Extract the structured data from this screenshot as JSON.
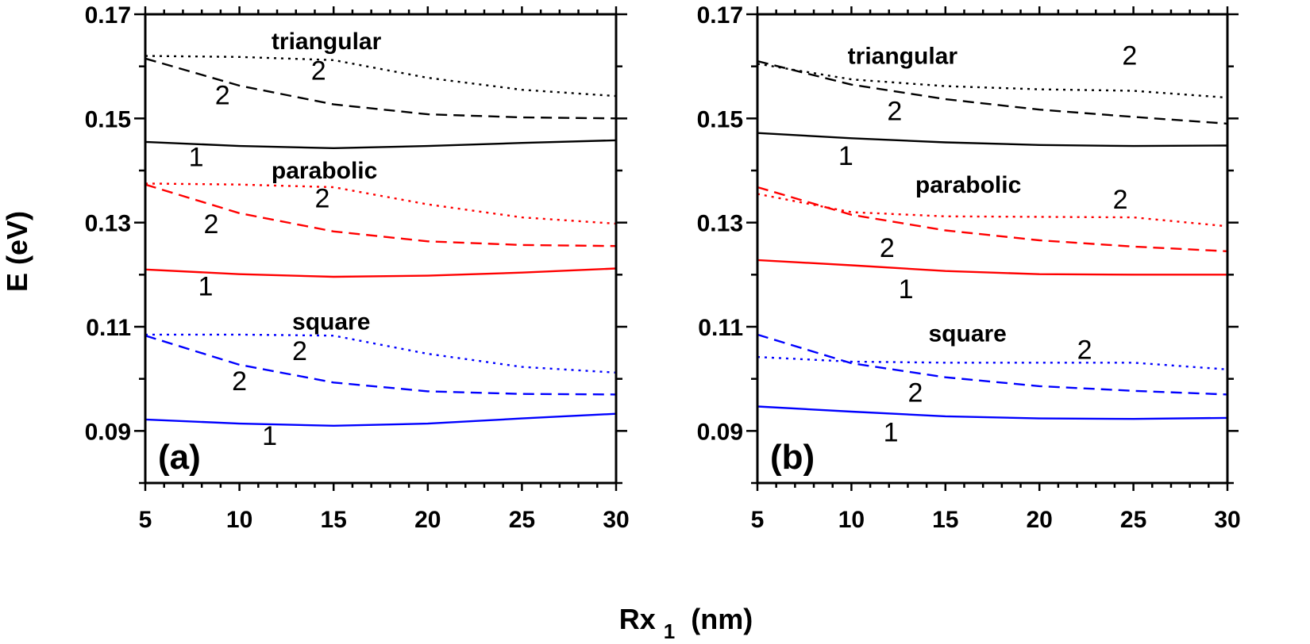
{
  "figure": {
    "ylabel": "E (eV)",
    "xlabel_main": "Rx",
    "xlabel_sub": "1",
    "xlabel_unit": " (nm)"
  },
  "chart_data": [
    {
      "type": "line",
      "panel_label": "(a)",
      "xlim": [
        5,
        30
      ],
      "ylim": [
        0.08,
        0.17
      ],
      "x_ticks": [
        5,
        10,
        15,
        20,
        25,
        30
      ],
      "x_tick_labels": [
        "5",
        "10",
        "15",
        "20",
        "25",
        "30"
      ],
      "y_ticks": [
        0.09,
        0.11,
        0.13,
        0.15,
        0.17
      ],
      "y_tick_labels": [
        "0.09",
        "0.11",
        "0.13",
        "0.15",
        "0.17"
      ],
      "region_labels": [
        {
          "id": "triangular",
          "text": "triangular",
          "x": 11.7,
          "y": 0.1633
        },
        {
          "id": "parabolic",
          "text": "parabolic",
          "x": 11.7,
          "y": 0.1385
        },
        {
          "id": "square",
          "text": "square",
          "x": 12.8,
          "y": 0.1095
        }
      ],
      "series": [
        {
          "name": "triangular level 1",
          "shape": "triangular",
          "level": "1",
          "color": "#000000",
          "dash": "solid",
          "x": [
            5,
            10,
            15,
            20,
            25,
            30
          ],
          "y": [
            0.1455,
            0.1447,
            0.1443,
            0.1447,
            0.1453,
            0.1458
          ]
        },
        {
          "name": "triangular level 2 dashed",
          "shape": "triangular",
          "level": "2",
          "color": "#000000",
          "dash": "dashed",
          "x": [
            5,
            10,
            15,
            20,
            25,
            30
          ],
          "y": [
            0.1615,
            0.1563,
            0.1527,
            0.1508,
            0.1502,
            0.15
          ]
        },
        {
          "name": "triangular level 2 dotted",
          "shape": "triangular",
          "level": "2",
          "color": "#000000",
          "dash": "dotted",
          "x": [
            5,
            10,
            15,
            20,
            25,
            30
          ],
          "y": [
            0.162,
            0.1618,
            0.1612,
            0.1578,
            0.1555,
            0.1543
          ]
        },
        {
          "name": "parabolic level 1",
          "shape": "parabolic",
          "level": "1",
          "color": "#ff0000",
          "dash": "solid",
          "x": [
            5,
            10,
            15,
            20,
            25,
            30
          ],
          "y": [
            0.121,
            0.1201,
            0.1196,
            0.1198,
            0.1204,
            0.1212
          ]
        },
        {
          "name": "parabolic level 2 dashed",
          "shape": "parabolic",
          "level": "2",
          "color": "#ff0000",
          "dash": "dashed",
          "x": [
            5,
            10,
            15,
            20,
            25,
            30
          ],
          "y": [
            0.1373,
            0.1318,
            0.1283,
            0.1264,
            0.1257,
            0.1255
          ]
        },
        {
          "name": "parabolic level 2 dotted",
          "shape": "parabolic",
          "level": "2",
          "color": "#ff0000",
          "dash": "dotted",
          "x": [
            5,
            10,
            15,
            20,
            25,
            30
          ],
          "y": [
            0.1375,
            0.1373,
            0.1368,
            0.1335,
            0.131,
            0.1298
          ]
        },
        {
          "name": "square level 1",
          "shape": "square",
          "level": "1",
          "color": "#0000ff",
          "dash": "solid",
          "x": [
            5,
            10,
            15,
            20,
            25,
            30
          ],
          "y": [
            0.0922,
            0.0914,
            0.091,
            0.0914,
            0.0924,
            0.0933
          ]
        },
        {
          "name": "square level 2 dashed",
          "shape": "square",
          "level": "2",
          "color": "#0000ff",
          "dash": "dashed",
          "x": [
            5,
            10,
            15,
            20,
            25,
            30
          ],
          "y": [
            0.1083,
            0.1027,
            0.0993,
            0.0976,
            0.0971,
            0.097
          ]
        },
        {
          "name": "square level 2 dotted",
          "shape": "square",
          "level": "2",
          "color": "#0000ff",
          "dash": "dotted",
          "x": [
            5,
            10,
            15,
            20,
            25,
            30
          ],
          "y": [
            0.1085,
            0.1085,
            0.1083,
            0.1048,
            0.1023,
            0.1012
          ]
        }
      ],
      "curve_labels": [
        {
          "text": "2",
          "x": 14.2,
          "y": 0.1574
        },
        {
          "text": "2",
          "x": 9.1,
          "y": 0.1527
        },
        {
          "text": "1",
          "x": 7.7,
          "y": 0.1408
        },
        {
          "text": "2",
          "x": 14.4,
          "y": 0.1329
        },
        {
          "text": "2",
          "x": 8.5,
          "y": 0.128
        },
        {
          "text": "1",
          "x": 8.2,
          "y": 0.116
        },
        {
          "text": "2",
          "x": 13.2,
          "y": 0.1036
        },
        {
          "text": "2",
          "x": 10.0,
          "y": 0.0978
        },
        {
          "text": "1",
          "x": 11.6,
          "y": 0.0873
        }
      ]
    },
    {
      "type": "line",
      "panel_label": "(b)",
      "xlim": [
        5,
        30
      ],
      "ylim": [
        0.08,
        0.17
      ],
      "x_ticks": [
        5,
        10,
        15,
        20,
        25,
        30
      ],
      "x_tick_labels": [
        "5",
        "10",
        "15",
        "20",
        "25",
        "30"
      ],
      "y_ticks": [
        0.09,
        0.11,
        0.13,
        0.15,
        0.17
      ],
      "y_tick_labels": [
        "0.09",
        "0.11",
        "0.13",
        "0.15",
        "0.17"
      ],
      "region_labels": [
        {
          "id": "triangular",
          "text": "triangular",
          "x": 9.8,
          "y": 0.1605
        },
        {
          "id": "parabolic",
          "text": "parabolic",
          "x": 13.4,
          "y": 0.1357
        },
        {
          "id": "square",
          "text": "square",
          "x": 14.1,
          "y": 0.1072
        }
      ],
      "series": [
        {
          "name": "triangular level 1",
          "shape": "triangular",
          "level": "1",
          "color": "#000000",
          "dash": "solid",
          "x": [
            5,
            10,
            15,
            20,
            25,
            30
          ],
          "y": [
            0.1472,
            0.1462,
            0.1454,
            0.1449,
            0.1447,
            0.1448
          ]
        },
        {
          "name": "triangular level 2 dashed",
          "shape": "triangular",
          "level": "2",
          "color": "#000000",
          "dash": "dashed",
          "x": [
            5,
            10,
            15,
            20,
            25,
            30
          ],
          "y": [
            0.161,
            0.1565,
            0.1537,
            0.1517,
            0.1503,
            0.149
          ]
        },
        {
          "name": "triangular level 2 dotted",
          "shape": "triangular",
          "level": "2",
          "color": "#000000",
          "dash": "dotted",
          "x": [
            5,
            10,
            15,
            20,
            25,
            30
          ],
          "y": [
            0.1605,
            0.1575,
            0.1562,
            0.1556,
            0.1553,
            0.154
          ]
        },
        {
          "name": "parabolic level 1",
          "shape": "parabolic",
          "level": "1",
          "color": "#ff0000",
          "dash": "solid",
          "x": [
            5,
            10,
            15,
            20,
            25,
            30
          ],
          "y": [
            0.1228,
            0.1218,
            0.1207,
            0.1201,
            0.12,
            0.12
          ]
        },
        {
          "name": "parabolic level 2 dashed",
          "shape": "parabolic",
          "level": "2",
          "color": "#ff0000",
          "dash": "dashed",
          "x": [
            5,
            10,
            15,
            20,
            25,
            30
          ],
          "y": [
            0.1368,
            0.1315,
            0.1285,
            0.1266,
            0.1254,
            0.1245
          ]
        },
        {
          "name": "parabolic level 2 dotted",
          "shape": "parabolic",
          "level": "2",
          "color": "#ff0000",
          "dash": "dotted",
          "x": [
            5,
            10,
            15,
            20,
            25,
            30
          ],
          "y": [
            0.1355,
            0.132,
            0.1312,
            0.1311,
            0.131,
            0.1293
          ]
        },
        {
          "name": "square level 1",
          "shape": "square",
          "level": "1",
          "color": "#0000ff",
          "dash": "solid",
          "x": [
            5,
            10,
            15,
            20,
            25,
            30
          ],
          "y": [
            0.0947,
            0.0937,
            0.0928,
            0.0924,
            0.0923,
            0.0925
          ]
        },
        {
          "name": "square level 2 dashed",
          "shape": "square",
          "level": "2",
          "color": "#0000ff",
          "dash": "dashed",
          "x": [
            5,
            10,
            15,
            20,
            25,
            30
          ],
          "y": [
            0.1085,
            0.103,
            0.1003,
            0.0986,
            0.0977,
            0.097
          ]
        },
        {
          "name": "square level 2 dotted",
          "shape": "square",
          "level": "2",
          "color": "#0000ff",
          "dash": "dotted",
          "x": [
            5,
            10,
            15,
            20,
            25,
            30
          ],
          "y": [
            0.1042,
            0.1033,
            0.1031,
            0.1031,
            0.1031,
            0.1018
          ]
        }
      ],
      "curve_labels": [
        {
          "text": "2",
          "x": 24.8,
          "y": 0.1603
        },
        {
          "text": "2",
          "x": 12.3,
          "y": 0.1497
        },
        {
          "text": "1",
          "x": 9.7,
          "y": 0.1411
        },
        {
          "text": "2",
          "x": 24.3,
          "y": 0.1327
        },
        {
          "text": "2",
          "x": 11.9,
          "y": 0.1234
        },
        {
          "text": "1",
          "x": 12.9,
          "y": 0.1155
        },
        {
          "text": "2",
          "x": 22.4,
          "y": 0.1038
        },
        {
          "text": "2",
          "x": 13.4,
          "y": 0.0956
        },
        {
          "text": "1",
          "x": 12.1,
          "y": 0.088
        }
      ]
    }
  ]
}
